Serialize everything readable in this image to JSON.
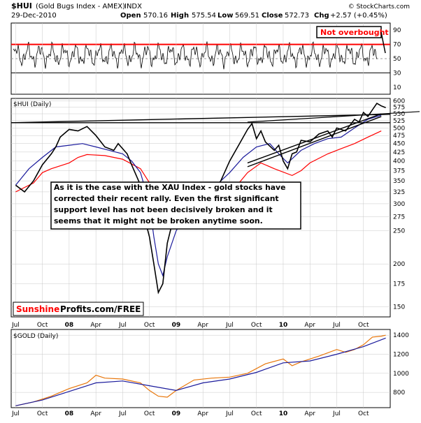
{
  "header": {
    "symbol": "$HUI",
    "name": "(Gold Bugs Index - AMEX)",
    "type": "INDX",
    "date": "29-Dec-2010",
    "open_label": "Open",
    "open": "570.16",
    "high_label": "High",
    "high": "575.54",
    "low_label": "Low",
    "low": "569.51",
    "close_label": "Close",
    "close": "572.73",
    "chg_label": "Chg",
    "chg": "+2.57 (+0.45%)",
    "copyright": "© StockCharts.com"
  },
  "annotations": {
    "not_overbought": "Not overbought",
    "main_text": [
      "As it is the case with the XAU Index - gold stocks have",
      "corrected their recent rally. Even the first significant",
      "support level has not been decisively broken and it",
      "seems that it might not be broken anytime soon."
    ],
    "logo_sunshine": "Sunshine",
    "logo_rest": "Profits.com/FREE"
  },
  "colors": {
    "red": "#ff0000",
    "navy": "#1b1b9c",
    "orange": "#e8760a",
    "black": "#000000",
    "grid": "#c8c8c8"
  },
  "chart_data": [
    {
      "type": "line",
      "panel": "RSI",
      "y_ticks": [
        "90",
        "70",
        "50",
        "30",
        "10"
      ],
      "ylim": [
        0,
        100
      ],
      "lines": [
        70,
        30
      ],
      "note": "oscillator"
    },
    {
      "type": "candlestick",
      "title": "$HUI (Daily)",
      "y_ticks": [
        "600",
        "575",
        "550",
        "525",
        "500",
        "475",
        "450",
        "425",
        "400",
        "375",
        "350",
        "325",
        "300",
        "275",
        "250",
        "200",
        "175",
        "150"
      ],
      "ylim": [
        140,
        610
      ],
      "x_labels": [
        "Jul",
        "Oct",
        "08",
        "Apr",
        "Jul",
        "Oct",
        "09",
        "Apr",
        "Jul",
        "Oct",
        "10",
        "Apr",
        "Jul",
        "Oct"
      ],
      "x_months": [
        0,
        3,
        6,
        9,
        12,
        15,
        18,
        21,
        24,
        27,
        30,
        33,
        36,
        39
      ],
      "x_month_span": [
        -0.5,
        42.0
      ],
      "series": [
        {
          "color": "red",
          "x": [
            0.0,
            2.0,
            3.0,
            4.0,
            6.0,
            7.0,
            8.0,
            10.0,
            12.0,
            14.0,
            15.5,
            17.0,
            18.5,
            20.0,
            22.0,
            24.0,
            26.0,
            27.5,
            29.0,
            31.0,
            32.0,
            33.0,
            35.0,
            36.5,
            38.0,
            39.5,
            41.0
          ],
          "y": [
            325,
            345,
            370,
            380,
            395,
            410,
            418,
            415,
            405,
            380,
            330,
            270,
            255,
            255,
            280,
            320,
            370,
            395,
            380,
            363,
            375,
            395,
            420,
            435,
            450,
            470,
            490
          ]
        },
        {
          "color": "navy",
          "x": [
            0.0,
            1.5,
            3.0,
            4.5,
            6.0,
            7.5,
            9.0,
            10.5,
            12.0,
            13.0,
            14.0,
            15.0,
            15.5,
            16.0,
            16.5,
            17.0,
            18.0,
            19.5,
            21.0,
            22.5,
            24.0,
            25.5,
            27.0,
            28.5,
            29.5,
            30.5,
            32.0,
            33.5,
            35.0,
            36.5,
            38.0,
            39.5,
            41.0
          ],
          "y": [
            340,
            380,
            410,
            440,
            445,
            450,
            440,
            430,
            420,
            400,
            370,
            300,
            240,
            200,
            185,
            210,
            250,
            290,
            315,
            340,
            370,
            410,
            440,
            450,
            420,
            395,
            430,
            450,
            465,
            470,
            500,
            530,
            545
          ]
        },
        {
          "color": "black",
          "x": [
            0.0,
            1.0,
            2.0,
            3.0,
            4.0,
            4.5,
            5.0,
            6.0,
            7.0,
            8.0,
            9.0,
            10.0,
            11.0,
            11.5,
            12.5,
            13.0,
            14.0,
            14.5,
            15.0,
            15.5,
            16.0,
            16.5,
            17.0,
            17.5,
            18.0,
            19.0,
            19.5,
            20.0,
            20.5,
            21.0,
            22.0,
            23.0,
            24.0,
            25.0,
            26.0,
            26.5,
            27.0,
            27.5,
            28.0,
            29.0,
            29.5,
            30.0,
            30.5,
            31.0,
            31.5,
            32.0,
            33.0,
            34.0,
            35.0,
            35.5,
            36.0,
            37.0,
            38.0,
            38.5,
            39.0,
            39.5,
            40.0,
            40.5,
            41.0,
            41.5
          ],
          "y": [
            340,
            325,
            350,
            390,
            420,
            440,
            470,
            495,
            490,
            505,
            475,
            440,
            430,
            450,
            420,
            390,
            340,
            270,
            240,
            200,
            165,
            175,
            230,
            260,
            300,
            310,
            300,
            280,
            270,
            290,
            310,
            350,
            400,
            445,
            495,
            515,
            465,
            490,
            455,
            430,
            445,
            400,
            380,
            420,
            425,
            460,
            455,
            480,
            490,
            470,
            500,
            490,
            530,
            520,
            555,
            540,
            565,
            590,
            580,
            573
          ]
        }
      ],
      "support_lines": [
        {
          "name": "horizontal resistance",
          "x": [
            -0.5,
            42.0
          ],
          "y": [
            518,
            518
          ]
        },
        {
          "name": "upper trend",
          "x": [
            -0.5,
            42.0
          ],
          "y": [
            518,
            548
          ]
        },
        {
          "name": "rising support 1",
          "x": [
            26.0,
            41.0
          ],
          "y": [
            385,
            540
          ]
        },
        {
          "name": "rising support 2",
          "x": [
            26.0,
            41.0
          ],
          "y": [
            395,
            550
          ]
        }
      ]
    },
    {
      "type": "line",
      "title": "$GOLD (Daily)",
      "y_ticks": [
        "1400",
        "1200",
        "1000",
        "800"
      ],
      "ylim": [
        640,
        1460
      ],
      "series": [
        {
          "color": "orange",
          "x": [
            0.0,
            2.0,
            4.0,
            6.0,
            8.0,
            9.0,
            10.0,
            12.0,
            14.0,
            15.0,
            16.0,
            17.0,
            18.0,
            20.0,
            22.0,
            24.0,
            26.0,
            28.0,
            30.0,
            31.0,
            32.0,
            34.0,
            36.0,
            37.0,
            38.0,
            39.0,
            40.0,
            41.0,
            41.5
          ],
          "y": [
            660,
            700,
            760,
            840,
            900,
            980,
            950,
            940,
            900,
            820,
            760,
            750,
            820,
            930,
            950,
            960,
            1000,
            1100,
            1150,
            1080,
            1120,
            1180,
            1250,
            1220,
            1250,
            1300,
            1380,
            1390,
            1400
          ]
        },
        {
          "color": "navy",
          "x": [
            0.0,
            3.0,
            6.0,
            9.0,
            12.0,
            15.0,
            18.0,
            21.0,
            24.0,
            27.0,
            30.0,
            33.0,
            36.0,
            39.0,
            41.5
          ],
          "y": [
            660,
            720,
            810,
            900,
            920,
            870,
            820,
            900,
            940,
            1010,
            1110,
            1130,
            1200,
            1280,
            1370
          ]
        }
      ]
    }
  ]
}
